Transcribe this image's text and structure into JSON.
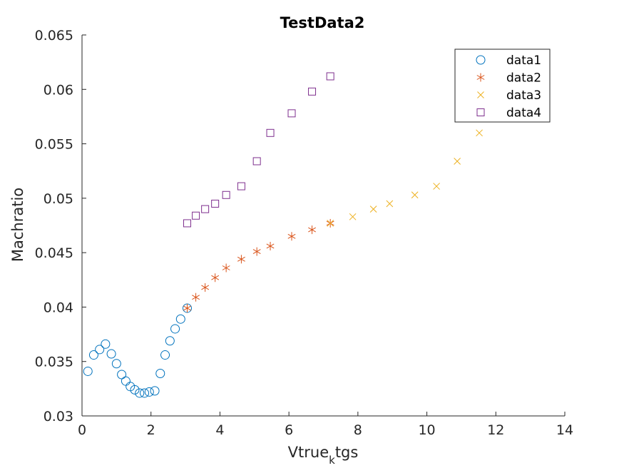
{
  "chart_data": {
    "type": "scatter",
    "title": "TestData2",
    "xlabel_main": "Vtrue",
    "xlabel_sub": "k",
    "xlabel_tail": "tgs",
    "ylabel": "Machratio",
    "xlim": [
      0,
      14
    ],
    "ylim": [
      0.03,
      0.065
    ],
    "xticks": [
      0,
      2,
      4,
      6,
      8,
      10,
      12,
      14
    ],
    "xtick_labels": [
      "0",
      "2",
      "4",
      "6",
      "8",
      "10",
      "12",
      "14"
    ],
    "yticks": [
      0.03,
      0.035,
      0.04,
      0.045,
      0.05,
      0.055,
      0.06,
      0.065
    ],
    "ytick_labels": [
      "0.03",
      "0.035",
      "0.04",
      "0.045",
      "0.05",
      "0.055",
      "0.06",
      "0.065"
    ],
    "grid": false,
    "legend_placement": "top-right",
    "series": [
      {
        "name": "data1",
        "marker": "circle",
        "color": "#0072BD",
        "x": [
          0.17,
          0.34,
          0.51,
          0.68,
          0.85,
          1.0,
          1.15,
          1.27,
          1.4,
          1.53,
          1.67,
          1.81,
          1.95,
          2.11,
          2.27,
          2.41,
          2.55,
          2.7,
          2.86,
          3.05
        ],
        "y": [
          0.0341,
          0.0356,
          0.0361,
          0.0366,
          0.0357,
          0.0348,
          0.0338,
          0.0332,
          0.0327,
          0.0324,
          0.0321,
          0.0321,
          0.0322,
          0.0323,
          0.0339,
          0.0356,
          0.0369,
          0.038,
          0.0389,
          0.0399
        ]
      },
      {
        "name": "data2",
        "marker": "asterisk",
        "color": "#D95319",
        "x": [
          3.05,
          3.3,
          3.57,
          3.86,
          4.18,
          4.62,
          5.07,
          5.46,
          6.08,
          6.67,
          7.2
        ],
        "y": [
          0.0399,
          0.0409,
          0.0418,
          0.0427,
          0.0436,
          0.0444,
          0.0451,
          0.0456,
          0.0465,
          0.0471,
          0.0477
        ]
      },
      {
        "name": "data3",
        "marker": "x",
        "color": "#EDB120",
        "x": [
          7.2,
          7.85,
          8.45,
          8.92,
          9.65,
          10.28,
          10.88,
          11.52
        ],
        "y": [
          0.0477,
          0.0483,
          0.049,
          0.0495,
          0.0503,
          0.0511,
          0.0534,
          0.056
        ]
      },
      {
        "name": "data4",
        "marker": "square",
        "color": "#7E2F8E",
        "x": [
          3.05,
          3.3,
          3.57,
          3.86,
          4.18,
          4.62,
          5.07,
          5.46,
          6.08,
          6.67,
          7.2
        ],
        "y": [
          0.0477,
          0.0484,
          0.049,
          0.0495,
          0.0503,
          0.0511,
          0.0534,
          0.056,
          0.0578,
          0.0598,
          0.0612
        ]
      }
    ]
  }
}
